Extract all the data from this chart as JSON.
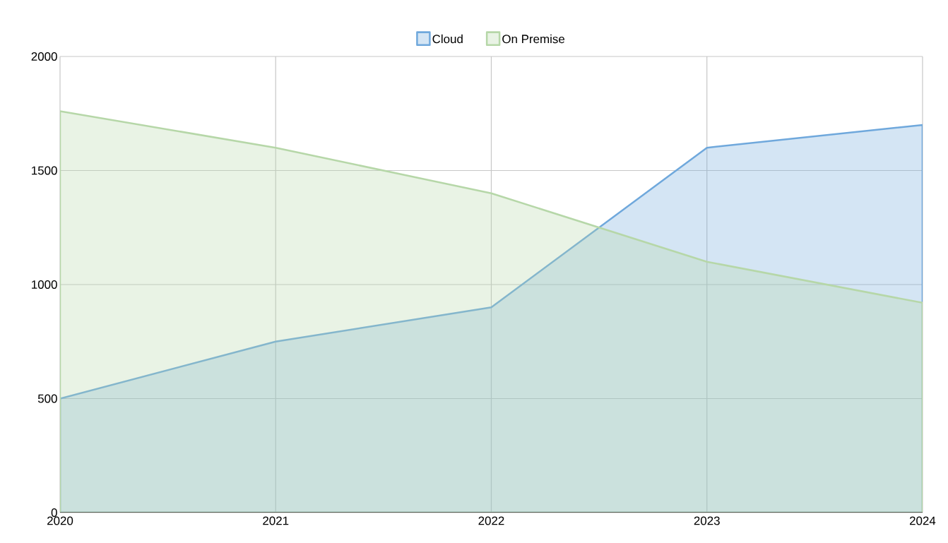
{
  "chart_data": {
    "type": "area",
    "x": [
      2020,
      2021,
      2022,
      2023,
      2024
    ],
    "series": [
      {
        "name": "Cloud",
        "color": "#6fa8dc",
        "values": [
          500,
          750,
          900,
          1600,
          1700
        ]
      },
      {
        "name": "On Premise",
        "color": "#b6d7a8",
        "values": [
          1760,
          1600,
          1400,
          1100,
          920
        ]
      }
    ],
    "xlim": [
      2020,
      2024
    ],
    "xticks": [
      2020,
      2021,
      2022,
      2023,
      2024
    ],
    "ylim": [
      0,
      2000
    ],
    "yticks": [
      0,
      500,
      1000,
      1500,
      2000
    ],
    "grid": true,
    "legend": "top"
  }
}
